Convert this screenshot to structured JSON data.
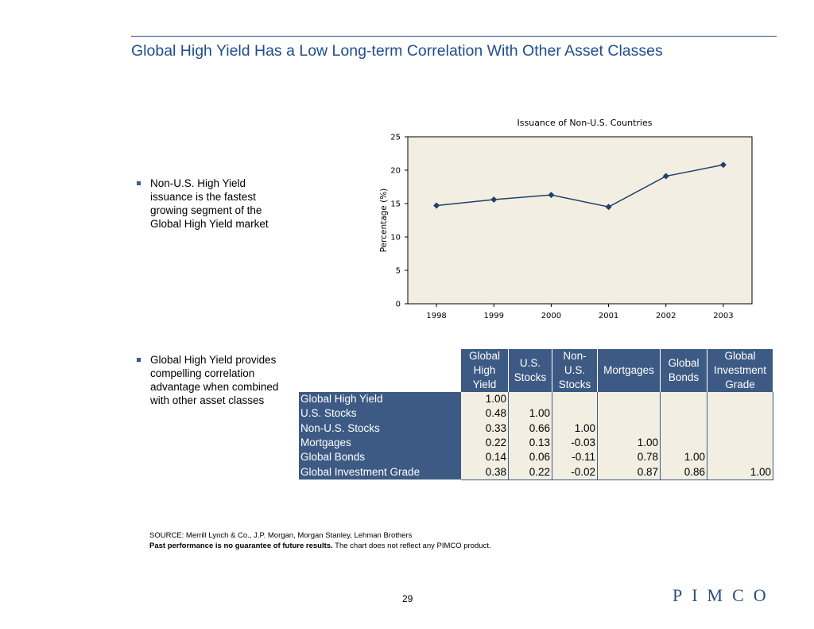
{
  "slide": {
    "title": "Global High Yield Has a Low Long-term Correlation With Other Asset Classes",
    "page_number": "29",
    "logo_text": "PIMCO",
    "accent_color": "#2c4f7c"
  },
  "bullets": [
    "Non-U.S. High Yield issuance is the fastest growing segment of the Global High Yield market",
    "Global High Yield provides compelling correlation advantage when combined with other asset classes"
  ],
  "chart_data": [
    {
      "type": "line",
      "title": "Issuance of Non-U.S. Countries",
      "xlabel": "",
      "ylabel": "Percentage (%)",
      "x": [
        "1998",
        "1999",
        "2000",
        "2001",
        "2002",
        "2003"
      ],
      "series": [
        {
          "values": [
            14.7,
            15.6,
            16.3,
            14.5,
            19.1,
            20.8
          ],
          "color": "#1f3f6e"
        }
      ],
      "ylim": [
        0,
        25
      ],
      "yticks": [
        0,
        5,
        10,
        15,
        20,
        25
      ],
      "grid": false,
      "plot_background": "#f2efe2"
    },
    {
      "type": "table",
      "columns": [
        "Global High Yield",
        "U.S. Stocks",
        "Non-U.S. Stocks",
        "Mortgages",
        "Global Bonds",
        "Global Investment Grade"
      ],
      "rows": [
        {
          "label": "Global High Yield",
          "values": [
            "1.00",
            "",
            "",
            "",
            "",
            ""
          ]
        },
        {
          "label": "U.S. Stocks",
          "values": [
            "0.48",
            "1.00",
            "",
            "",
            "",
            ""
          ]
        },
        {
          "label": "Non-U.S. Stocks",
          "values": [
            "0.33",
            "0.66",
            "1.00",
            "",
            "",
            ""
          ]
        },
        {
          "label": "Mortgages",
          "values": [
            "0.22",
            "0.13",
            "-0.03",
            "1.00",
            "",
            ""
          ]
        },
        {
          "label": "Global Bonds",
          "values": [
            "0.14",
            "0.06",
            "-0.11",
            "0.78",
            "1.00",
            ""
          ]
        },
        {
          "label": "Global Investment Grade",
          "values": [
            "0.38",
            "0.22",
            "-0.02",
            "0.87",
            "0.86",
            "1.00"
          ]
        }
      ]
    }
  ],
  "source": {
    "line1": "SOURCE:  Merrill Lynch & Co., J.P. Morgan, Morgan Stanley, Lehman Brothers",
    "bold": "Past performance is no guarantee of future results.",
    "rest": " The chart does not reflect any PIMCO product."
  }
}
